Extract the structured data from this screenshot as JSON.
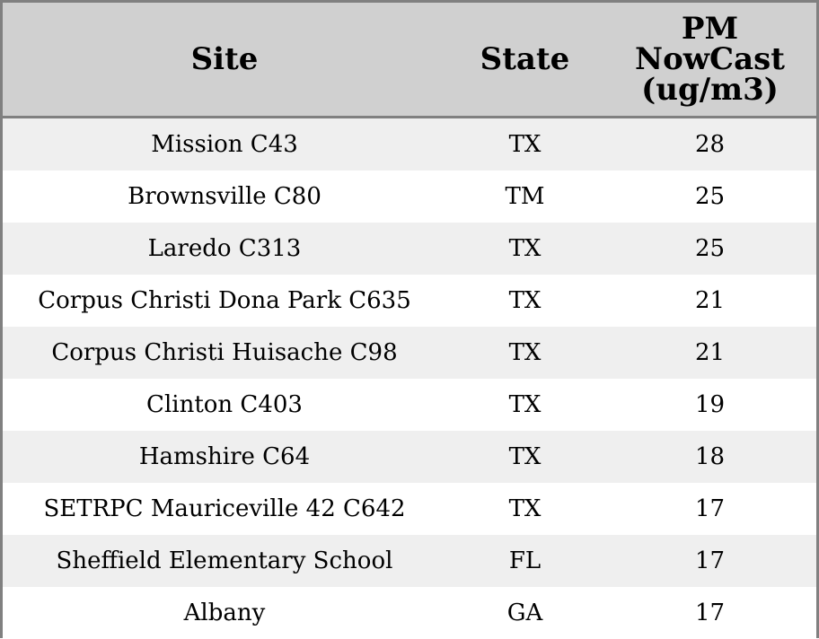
{
  "table": {
    "headers": {
      "site": "Site",
      "state": "State",
      "pm_line1": "PM",
      "pm_line2": "NowCast",
      "pm_line3": "(ug/m3)"
    },
    "rows": [
      {
        "site": "Mission C43",
        "state": "TX",
        "pm": "28"
      },
      {
        "site": "Brownsville C80",
        "state": "TM",
        "pm": "25"
      },
      {
        "site": "Laredo C313",
        "state": "TX",
        "pm": "25"
      },
      {
        "site": "Corpus Christi Dona Park C635",
        "state": "TX",
        "pm": "21"
      },
      {
        "site": "Corpus Christi Huisache C98",
        "state": "TX",
        "pm": "21"
      },
      {
        "site": "Clinton C403",
        "state": "TX",
        "pm": "19"
      },
      {
        "site": "Hamshire C64",
        "state": "TX",
        "pm": "18"
      },
      {
        "site": "SETRPC Mauriceville 42 C642",
        "state": "TX",
        "pm": "17"
      },
      {
        "site": "Sheffield Elementary School",
        "state": "FL",
        "pm": "17"
      },
      {
        "site": "Albany",
        "state": "GA",
        "pm": "17"
      }
    ]
  },
  "colors": {
    "header_bg": "#d0d0d0",
    "stripe_bg": "#efefef",
    "border": "#808080"
  }
}
